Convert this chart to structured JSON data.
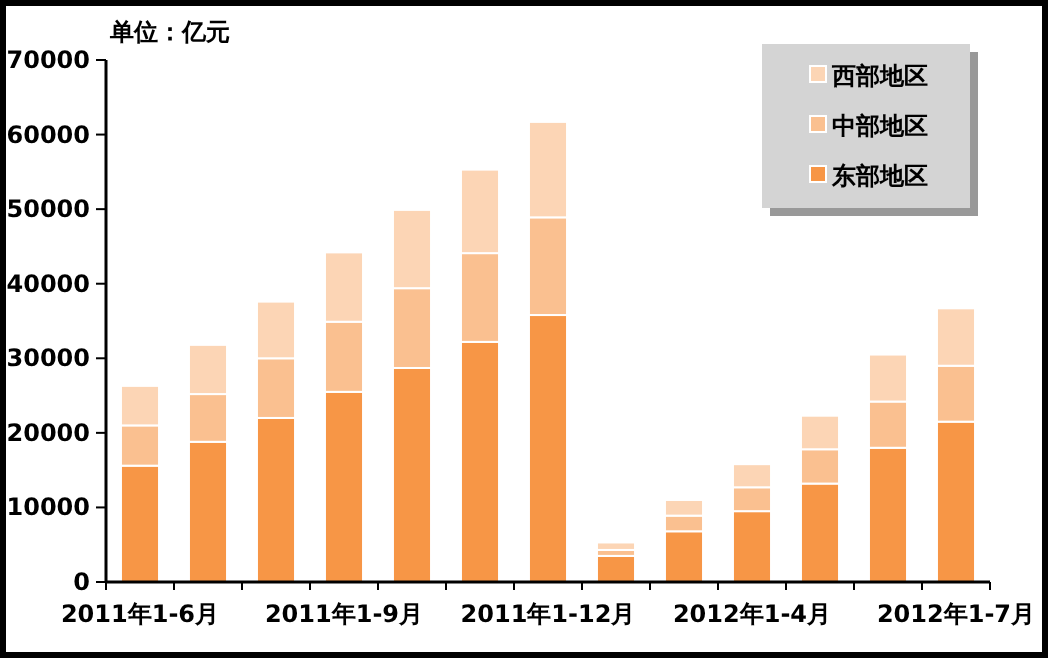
{
  "chart_data": {
    "type": "bar",
    "stacked": true,
    "ylabel": "单位：亿元",
    "categories": [
      "2011年1-6月",
      null,
      null,
      "2011年1-9月",
      null,
      null,
      "2011年1-12月",
      null,
      null,
      "2012年1-4月",
      null,
      null,
      "2012年1-7月"
    ],
    "series": [
      {
        "name": "东部地区",
        "color": "#f79646",
        "values": [
          15600,
          18800,
          22000,
          25500,
          28700,
          32200,
          35800,
          3500,
          6800,
          9500,
          13200,
          18000,
          21500
        ]
      },
      {
        "name": "中部地区",
        "color": "#fac090",
        "values": [
          5400,
          6400,
          8000,
          9400,
          10700,
          11900,
          13100,
          800,
          2100,
          3200,
          4600,
          6200,
          7500
        ]
      },
      {
        "name": "西部地区",
        "color": "#fcd5b5",
        "values": [
          5300,
          6600,
          7600,
          9300,
          10500,
          11200,
          12800,
          1000,
          2100,
          3100,
          4500,
          6300,
          7700
        ]
      }
    ],
    "ylim": [
      0,
      70000
    ],
    "yticks": [
      0,
      10000,
      20000,
      30000,
      40000,
      50000,
      60000,
      70000
    ],
    "grid": false,
    "legend": "top right"
  }
}
